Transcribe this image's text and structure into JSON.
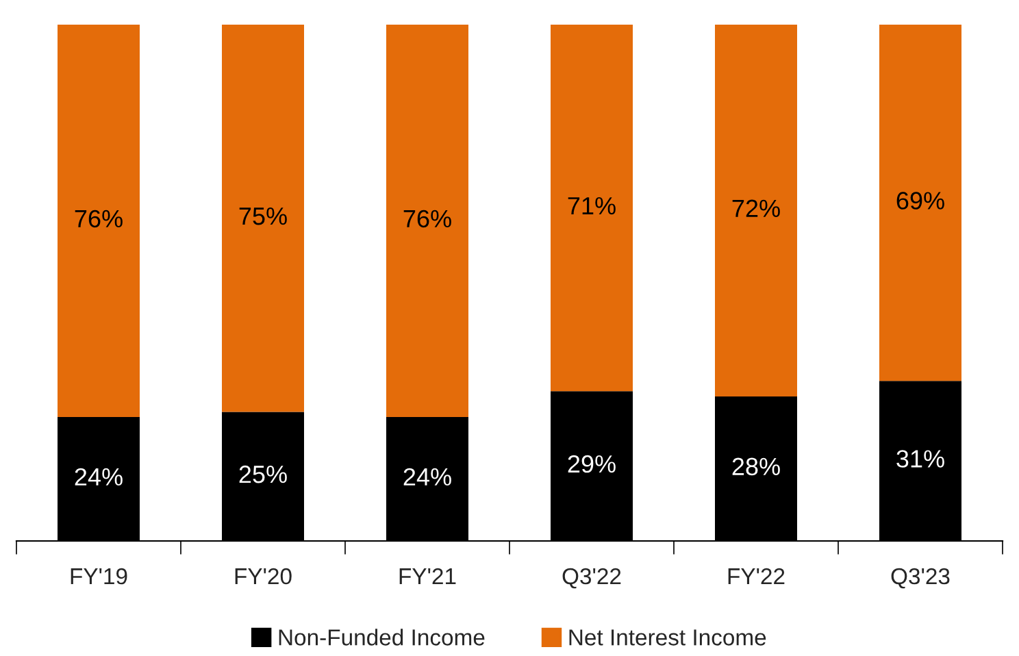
{
  "chart_data": {
    "type": "bar",
    "stacked": true,
    "legend": "bottom",
    "grid": false,
    "categories": [
      "FY'19",
      "FY'20",
      "FY'21",
      "Q3'22",
      "FY'22",
      "Q3'23"
    ],
    "series": [
      {
        "name": "Non-Funded Income",
        "color": "#000000",
        "values": [
          24,
          25,
          24,
          29,
          28,
          31
        ],
        "value_labels": [
          "24%",
          "25%",
          "24%",
          "29%",
          "28%",
          "31%"
        ]
      },
      {
        "name": "Net Interest Income",
        "color": "#e46c0a",
        "values": [
          76,
          75,
          76,
          71,
          72,
          69
        ],
        "value_labels": [
          "76%",
          "75%",
          "76%",
          "71%",
          "72%",
          "69%"
        ]
      }
    ]
  }
}
